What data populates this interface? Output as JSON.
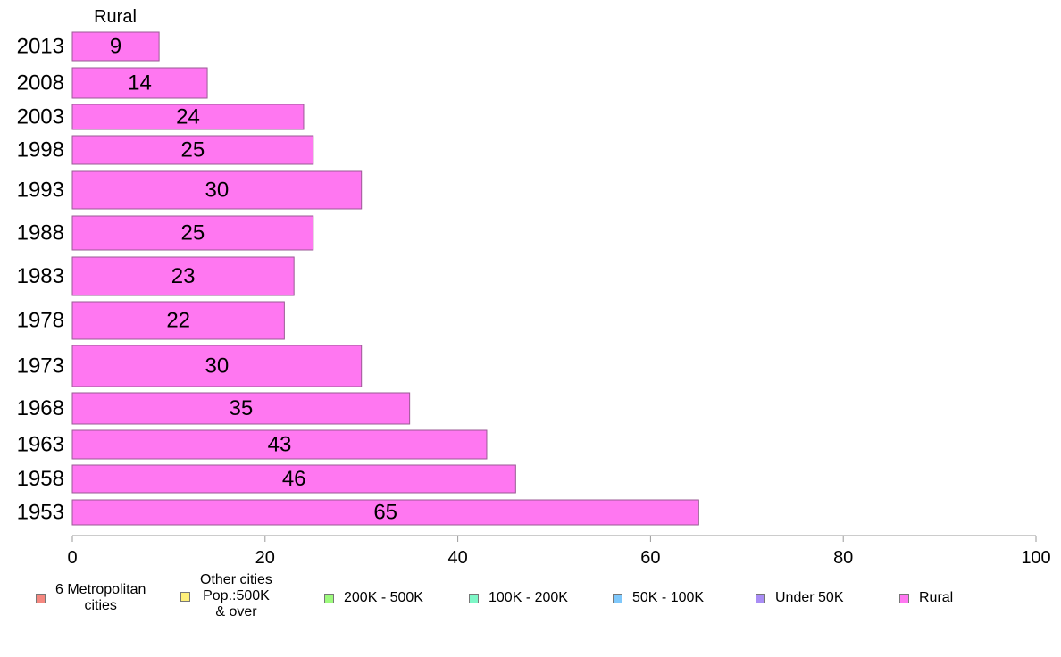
{
  "chart_data": {
    "type": "bar",
    "orientation": "horizontal",
    "panel_title": "Rural",
    "categories": [
      "2013",
      "2008",
      "2003",
      "1998",
      "1993",
      "1988",
      "1983",
      "1978",
      "1973",
      "1968",
      "1963",
      "1958",
      "1953"
    ],
    "series": [
      {
        "name": "Rural",
        "color": "#ff77f1",
        "values": [
          9,
          14,
          24,
          25,
          30,
          25,
          23,
          22,
          30,
          35,
          43,
          46,
          65
        ],
        "labels": [
          "9",
          "14",
          "24",
          "25",
          "30",
          "25",
          "23",
          "22",
          "30",
          "35",
          "43",
          "46",
          "65"
        ]
      }
    ],
    "xlim": [
      0,
      100
    ],
    "xticks": [
      "0",
      "20",
      "40",
      "60",
      "80",
      "100"
    ],
    "grid": false,
    "legend_position": "bottom"
  },
  "legend": {
    "items": [
      {
        "label": "6 Metropolitan\ncities",
        "color": "#f5877f"
      },
      {
        "label": "Other cities\nPop.:500K\n& over",
        "color": "#fff07a"
      },
      {
        "label": "200K - 500K",
        "color": "#9dfa7d"
      },
      {
        "label": "100K - 200K",
        "color": "#7ef7c7"
      },
      {
        "label": "50K - 100K",
        "color": "#7fc8fb"
      },
      {
        "label": "Under 50K",
        "color": "#a98df5"
      },
      {
        "label": "Rural",
        "color": "#ff77f1"
      }
    ]
  }
}
